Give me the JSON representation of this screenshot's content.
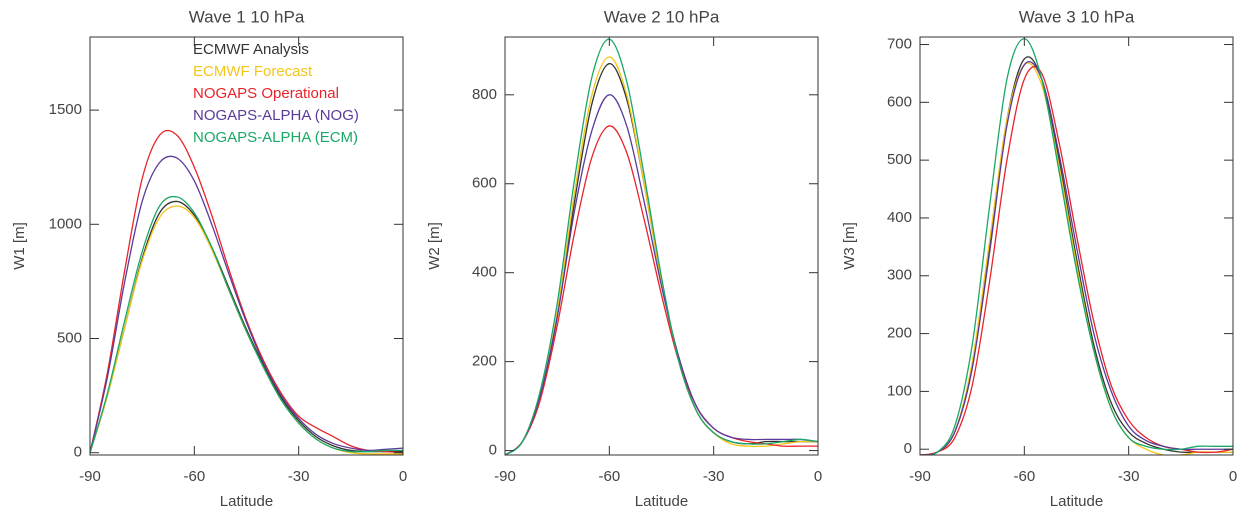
{
  "chart_data": [
    {
      "type": "line",
      "title": "Wave 1 10 hPa",
      "xlabel": "Latitude",
      "ylabel": "W1 [m]",
      "x": [
        -90,
        -85,
        -80,
        -75,
        -70,
        -65,
        -60,
        -55,
        -50,
        -45,
        -40,
        -35,
        -30,
        -25,
        -20,
        -15,
        -10,
        -5,
        0
      ],
      "xlim": [
        -90,
        0
      ],
      "xticks": [
        -90,
        -60,
        -30,
        0
      ],
      "ylim": [
        -10,
        1820
      ],
      "yticks": [
        0,
        500,
        1000,
        1500
      ],
      "legend": "upper center",
      "series": [
        {
          "name": "ECMWF Analysis",
          "color": "#333333",
          "values": [
            0,
            250,
            550,
            850,
            1050,
            1100,
            1040,
            900,
            720,
            540,
            380,
            240,
            140,
            70,
            30,
            10,
            5,
            5,
            5
          ]
        },
        {
          "name": "ECMWF Forecast",
          "color": "#f5c518",
          "values": [
            0,
            250,
            550,
            840,
            1030,
            1080,
            1030,
            890,
            710,
            530,
            370,
            230,
            130,
            60,
            20,
            0,
            -5,
            -5,
            -5
          ]
        },
        {
          "name": "NOGAPS Operational",
          "color": "#e8232a",
          "values": [
            0,
            350,
            800,
            1200,
            1390,
            1390,
            1250,
            1040,
            800,
            580,
            400,
            260,
            160,
            110,
            70,
            30,
            10,
            5,
            0
          ]
        },
        {
          "name": "NOGAPS-ALPHA (NOG)",
          "color": "#5a3a9a",
          "values": [
            0,
            330,
            750,
            1100,
            1270,
            1290,
            1190,
            1000,
            780,
            570,
            390,
            250,
            150,
            80,
            40,
            20,
            10,
            15,
            20
          ]
        },
        {
          "name": "NOGAPS-ALPHA (ECM)",
          "color": "#1aa866",
          "values": [
            0,
            260,
            580,
            880,
            1080,
            1120,
            1050,
            900,
            710,
            530,
            370,
            230,
            130,
            60,
            20,
            5,
            5,
            10,
            10
          ]
        }
      ]
    },
    {
      "type": "line",
      "title": "Wave 2 10 hPa",
      "xlabel": "Latitude",
      "ylabel": "W2 [m]",
      "x": [
        -90,
        -85,
        -80,
        -75,
        -70,
        -65,
        -60,
        -55,
        -50,
        -45,
        -40,
        -35,
        -30,
        -25,
        -20,
        -15,
        -10,
        -5,
        0
      ],
      "xlim": [
        -90,
        0
      ],
      "xticks": [
        -90,
        -60,
        -30,
        0
      ],
      "ylim": [
        -10,
        930
      ],
      "yticks": [
        0,
        200,
        400,
        600,
        800
      ],
      "series": [
        {
          "color": "#333333",
          "values": [
            -10,
            20,
            120,
            300,
            560,
            780,
            870,
            790,
            600,
            380,
            200,
            90,
            40,
            20,
            15,
            20,
            20,
            20,
            20
          ]
        },
        {
          "color": "#f5c518",
          "values": [
            -10,
            20,
            120,
            310,
            580,
            800,
            885,
            800,
            600,
            380,
            200,
            90,
            40,
            15,
            10,
            10,
            15,
            20,
            20
          ]
        },
        {
          "color": "#e8232a",
          "values": [
            -10,
            20,
            110,
            280,
            490,
            660,
            730,
            670,
            520,
            350,
            200,
            100,
            50,
            30,
            20,
            15,
            10,
            10,
            10
          ]
        },
        {
          "color": "#5a3a9a",
          "values": [
            -10,
            20,
            120,
            300,
            540,
            720,
            800,
            730,
            560,
            370,
            210,
            100,
            50,
            30,
            25,
            25,
            25,
            25,
            20
          ]
        },
        {
          "color": "#1aa866",
          "values": [
            -10,
            20,
            130,
            330,
            610,
            840,
            925,
            830,
            620,
            390,
            200,
            90,
            40,
            20,
            15,
            15,
            20,
            25,
            20
          ]
        }
      ]
    },
    {
      "type": "line",
      "title": "Wave 3 10 hPa",
      "xlabel": "Latitude",
      "ylabel": "W3 [m]",
      "x": [
        -90,
        -85,
        -80,
        -75,
        -70,
        -65,
        -60,
        -55,
        -50,
        -45,
        -40,
        -35,
        -30,
        -25,
        -20,
        -15,
        -10,
        -5,
        0
      ],
      "xlim": [
        -90,
        0
      ],
      "xticks": [
        -90,
        -60,
        -30,
        0
      ],
      "ylim": [
        -10,
        713
      ],
      "yticks": [
        0,
        100,
        200,
        300,
        400,
        500,
        600,
        700
      ],
      "series": [
        {
          "color": "#333333",
          "values": [
            -10,
            -5,
            30,
            140,
            350,
            570,
            675,
            640,
            500,
            330,
            180,
            80,
            30,
            10,
            0,
            -5,
            -5,
            -5,
            -5
          ]
        },
        {
          "color": "#f5c518",
          "values": [
            -10,
            -5,
            30,
            150,
            360,
            570,
            665,
            630,
            490,
            320,
            170,
            70,
            20,
            0,
            -10,
            -10,
            -5,
            -5,
            -5
          ]
        },
        {
          "color": "#e8232a",
          "values": [
            -10,
            -5,
            20,
            110,
            290,
            500,
            640,
            650,
            530,
            370,
            220,
            110,
            50,
            20,
            5,
            0,
            -5,
            -5,
            0
          ]
        },
        {
          "color": "#5a3a9a",
          "values": [
            -10,
            -5,
            30,
            140,
            340,
            560,
            665,
            640,
            510,
            350,
            200,
            100,
            40,
            15,
            5,
            0,
            0,
            0,
            0
          ]
        },
        {
          "color": "#1aa866",
          "values": [
            -10,
            -5,
            40,
            180,
            420,
            640,
            710,
            640,
            480,
            310,
            170,
            70,
            20,
            5,
            0,
            0,
            5,
            5,
            5
          ]
        }
      ]
    }
  ]
}
